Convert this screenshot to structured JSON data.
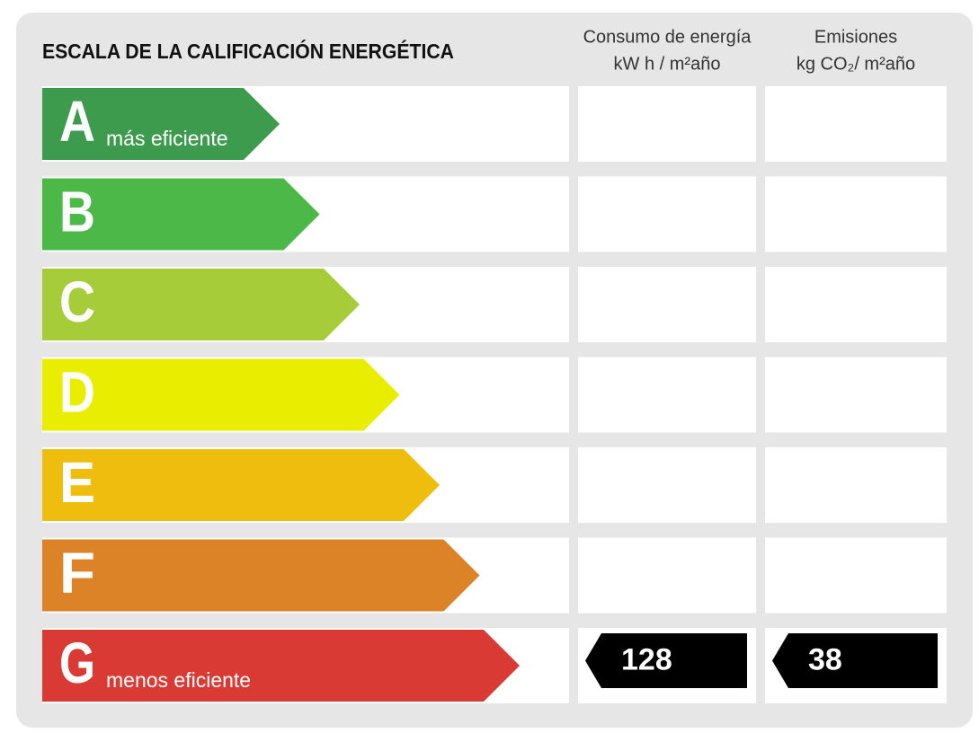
{
  "title": "ESCALA DE LA CALIFICACIÓN ENERGÉTICA",
  "columns": [
    {
      "line1": "Consumo de energía",
      "line2": "kW h / m²año"
    },
    {
      "line1": "Emisiones",
      "line2": "kg CO₂/ m²año"
    }
  ],
  "rows": [
    {
      "letter": "A",
      "label": "más eficiente",
      "color": "#3d9b4e"
    },
    {
      "letter": "B",
      "color": "#4cb848"
    },
    {
      "letter": "C",
      "color": "#a6cd39"
    },
    {
      "letter": "D",
      "color": "#e9ee00"
    },
    {
      "letter": "E",
      "color": "#efbd0d"
    },
    {
      "letter": "F",
      "color": "#dc8227"
    },
    {
      "letter": "G",
      "label": "menos eficiente",
      "color": "#d93a33",
      "energy": 128,
      "emissions": 38
    }
  ]
}
